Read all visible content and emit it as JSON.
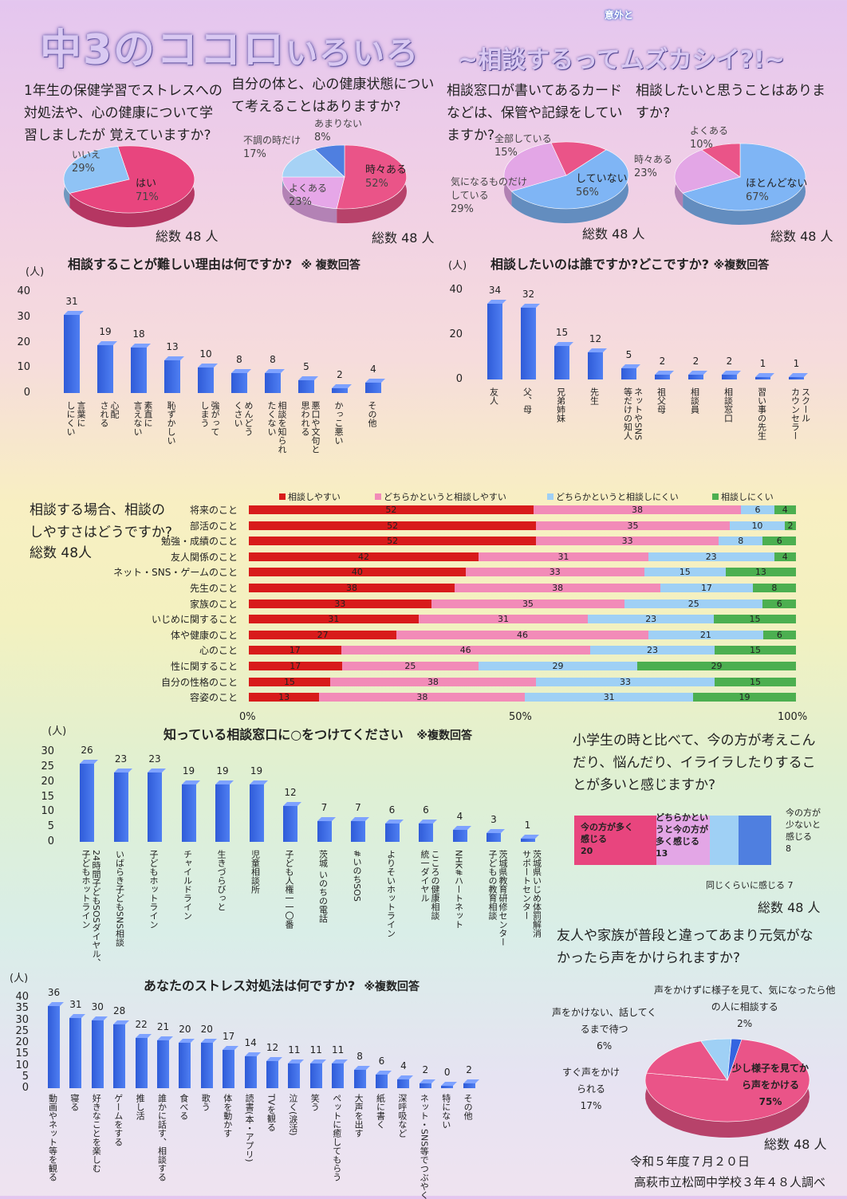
{
  "header": {
    "title_main": "中3のココロ",
    "title_small": "いろいろ",
    "subtitle": "~相談するってムズカシイ?!~",
    "annotation": "意外と"
  },
  "colors": {
    "red": "#d81b1b",
    "pink": "#f28bb8",
    "lightblue": "#9fd0f5",
    "green": "#4caf50",
    "blue": "#3464e0",
    "magenta": "#e8457e",
    "lilac": "#e3a6e6"
  },
  "pies": [
    {
      "question": "1年生の保健学習でストレスへの対処法や、心の健康について学習しましたが 覚えていますか?",
      "total": "総数 48 人",
      "slices": [
        {
          "label": "はい",
          "value": 71,
          "color": "#e8457e"
        },
        {
          "label": "いいえ",
          "value": 29,
          "color": "#8fc3f5"
        }
      ]
    },
    {
      "question": "自分の体と、心の健康状態について考えることはありますか?",
      "total": "総数 48 人",
      "slices": [
        {
          "label": "時々ある",
          "value": 52,
          "color": "#ea5488"
        },
        {
          "label": "よくある",
          "value": 23,
          "color": "#e6a7e8"
        },
        {
          "label": "不調の時だけ",
          "value": 17,
          "color": "#a6d2f5"
        },
        {
          "label": "あまりない",
          "value": 8,
          "color": "#4f7fe0"
        }
      ]
    },
    {
      "question": "相談窓口が書いてあるカードなどは、保管や記録をしていますか?",
      "total": "総数 48 人",
      "slices": [
        {
          "label": "していない",
          "value": 56,
          "color": "#7fb5f5"
        },
        {
          "label": "気になるものだけしている",
          "value": 29,
          "color": "#e3a6e6"
        },
        {
          "label": "全部している",
          "value": 15,
          "color": "#ea5488"
        }
      ]
    },
    {
      "question": "相談したいと思うことはありますか?",
      "total": "総数 48 人",
      "slices": [
        {
          "label": "ほとんどない",
          "value": 67,
          "color": "#7fb5f5"
        },
        {
          "label": "時々ある",
          "value": 23,
          "color": "#e3a6e6"
        },
        {
          "label": "よくある",
          "value": 10,
          "color": "#ea5488"
        }
      ]
    }
  ],
  "pie_value_texts": [
    [
      "71%",
      "29%"
    ],
    [
      "52%",
      "23%",
      "17%",
      "8%"
    ],
    [
      "56%",
      "29%",
      "15%"
    ],
    [
      "67%",
      "23%",
      "10%"
    ]
  ],
  "reasons": {
    "title": "相談することが難しい理由は何ですか?",
    "note": "※ 複数回答",
    "unit": "(人)",
    "yticks": [
      "40",
      "30",
      "20",
      "10",
      "0"
    ],
    "categories": [
      "言葉に\nしにくい",
      "心配\nされる",
      "素直に\n言えない",
      "恥ずかしい",
      "強がって\nしまう",
      "めんどう\nくさい",
      "相談を知られ\nたくない",
      "悪口や文句と\n思われる",
      "かっこ悪い",
      "その他"
    ],
    "values": [
      31,
      19,
      18,
      13,
      10,
      8,
      8,
      5,
      2,
      4
    ]
  },
  "who": {
    "title": "相談したいのは誰ですか?どこですか?",
    "note": "※複数回答",
    "unit": "(人)",
    "yticks": [
      "40",
      "20",
      "0"
    ],
    "categories": [
      "友人",
      "父、母",
      "兄弟姉妹",
      "先生",
      "ネットやSNS\n等だけの知人",
      "祖父母",
      "相談員",
      "相談窓口",
      "習い事の先生",
      "スクール\nカウンセラー"
    ],
    "values": [
      34,
      32,
      15,
      12,
      5,
      2,
      2,
      2,
      1,
      1
    ]
  },
  "ease": {
    "question": "相談する場合、相談のしやすさはどうですか?",
    "total": "総数 48人",
    "legend": [
      "相談しやすい",
      "どちらかというと相談しやすい",
      "どちらかというと相談しにくい",
      "相談しにくい"
    ],
    "axis": [
      "0%",
      "50%",
      "100%"
    ],
    "rows": [
      {
        "label": "将来のこと",
        "values": [
          52,
          38,
          6,
          4
        ]
      },
      {
        "label": "部活のこと",
        "values": [
          52,
          35,
          10,
          2
        ]
      },
      {
        "label": "勉強・成績のこと",
        "values": [
          52,
          33,
          8,
          6
        ]
      },
      {
        "label": "友人関係のこと",
        "values": [
          42,
          31,
          23,
          4
        ]
      },
      {
        "label": "ネット・SNS・ゲームのこと",
        "values": [
          40,
          33,
          15,
          13
        ]
      },
      {
        "label": "先生のこと",
        "values": [
          38,
          38,
          17,
          8
        ]
      },
      {
        "label": "家族のこと",
        "values": [
          33,
          35,
          25,
          6
        ]
      },
      {
        "label": "いじめに関すること",
        "values": [
          31,
          31,
          23,
          15
        ]
      },
      {
        "label": "体や健康のこと",
        "values": [
          27,
          46,
          21,
          6
        ]
      },
      {
        "label": "心のこと",
        "values": [
          17,
          46,
          23,
          15
        ]
      },
      {
        "label": "性に関すること",
        "values": [
          17,
          25,
          29,
          29
        ]
      },
      {
        "label": "自分の性格のこと",
        "values": [
          15,
          38,
          33,
          15
        ]
      },
      {
        "label": "容姿のこと",
        "values": [
          13,
          38,
          31,
          19
        ]
      }
    ]
  },
  "known": {
    "title": "知っている相談窓口に○をつけてください",
    "note": "※複数回答",
    "unit": "(人)",
    "yticks": [
      "30",
      "25",
      "20",
      "15",
      "10",
      "5",
      "0"
    ],
    "categories": [
      "24時間子どもSOSダイヤル、\n子どもホットライン",
      "いばらき子どもSNS相談",
      "子どもホットライン",
      "チャイルドライン",
      "生きづらびっと",
      "児童相談所",
      "子ども人権一一〇番",
      "茨城 いのちの電話",
      "#いのちSOS",
      "よりそいホットライン",
      "こころの健康相談\n統一ダイヤル",
      "NHK#ハートネット",
      "茨城県教育研修センター\n子どもの教育相談",
      "茨城県いじめ体罰解消\nサポートセンター"
    ],
    "values": [
      26,
      23,
      23,
      19,
      19,
      19,
      12,
      7,
      7,
      6,
      6,
      4,
      3,
      1
    ]
  },
  "compare": {
    "question": "小学生の時と比べて、今の方が考えこんだり、悩んだり、イライラしたりすることが多いと感じますか?",
    "total": "総数 48 人",
    "segments": [
      {
        "label": "今の方が多く感じる",
        "value": 20
      },
      {
        "label": "どちらかというと今の方が多く感じる",
        "value": 13
      },
      {
        "label": "同じくらいに感じる",
        "value": 7
      },
      {
        "label": "今の方が少ないと感じる",
        "value": 8
      }
    ],
    "seg_texts": [
      "今の方が多く\n感じる\n20",
      "どちらかとい\nうと今の方が\n多く感じる\n13",
      "同じくらいに感じる 7",
      "今の方が\n少ないと\n感じる\n8"
    ]
  },
  "stress": {
    "title": "あなたのストレス対処法は何ですか?",
    "note": "※複数回答",
    "unit": "(人)",
    "yticks": [
      "40",
      "35",
      "30",
      "25",
      "20",
      "15",
      "10",
      "5",
      "0"
    ],
    "categories": [
      "動画やネット等を観る",
      "寝る",
      "好きなことを楽しむ",
      "ゲームをする",
      "推し活",
      "誰かに話す、相談する",
      "食べる",
      "歌う",
      "体を動かす",
      "読書(本・アプリ)",
      "TVを観る",
      "泣く(涙活)",
      "笑う",
      "ペットに癒してもらう",
      "大声を出す",
      "紙に書く",
      "深呼吸など",
      "ネット・SNS等でつぶやく",
      "特にない",
      "その他"
    ],
    "values": [
      36,
      31,
      30,
      28,
      22,
      21,
      20,
      20,
      17,
      14,
      12,
      11,
      11,
      11,
      8,
      6,
      4,
      2,
      0,
      2
    ]
  },
  "friends": {
    "question": "友人や家族が普段と違ってあまり元気がなかったら声をかけられますか?",
    "total": "総数 48 人",
    "slices": [
      {
        "label": "少し様子を見てから声をかける",
        "value": 75,
        "color": "#ea5488"
      },
      {
        "label": "すぐ声をかけられる",
        "value": 17,
        "color": "#ea5488"
      },
      {
        "label": "声をかけない、話してくるまで待つ",
        "value": 6,
        "color": "#9fd0f5"
      },
      {
        "label": "声をかけずに様子を見て、気になったら他の人に相談する",
        "value": 2,
        "color": "#3464e0"
      }
    ],
    "texts": [
      "少し様子を見てか\nら声をかける\n75%",
      "すぐ声をかけ\nられる\n17%",
      "声をかけない、話してく\nるまで待つ\n6%",
      "声をかけずに様子を見て、気になったら他\nの人に相談する\n2%"
    ]
  },
  "footer": {
    "date": "令和５年度７月２０日",
    "school": "高萩市立松岡中学校３年４８人調べ"
  }
}
